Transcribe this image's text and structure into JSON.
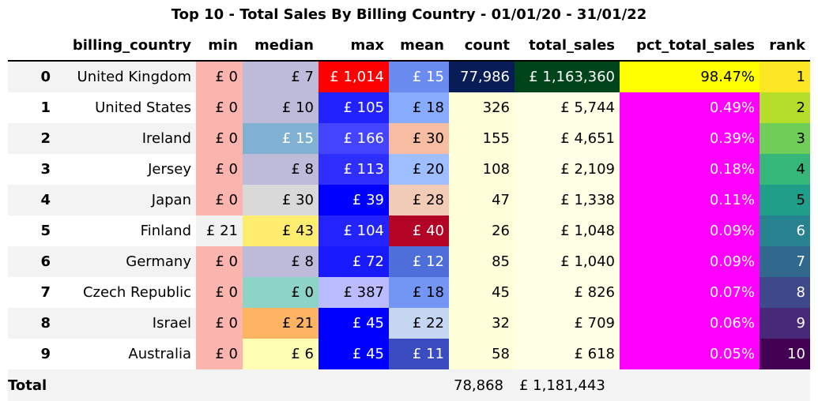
{
  "title": "Top 10 - Total Sales By Billing Country - 01/01/20 - 31/01/22",
  "columns": [
    "",
    "billing_country",
    "min",
    "median",
    "max",
    "mean",
    "count",
    "total_sales",
    "pct_total_sales",
    "rank"
  ],
  "rows": [
    {
      "idx": "0",
      "country": "United Kingdom",
      "min": "£ 0",
      "median": "£ 7",
      "max": "£ 1,014",
      "mean": "£ 15",
      "count": "77,986",
      "total": "£ 1,163,360",
      "pct": "98.47%",
      "rank": "1"
    },
    {
      "idx": "1",
      "country": "United States",
      "min": "£ 0",
      "median": "£ 10",
      "max": "£ 105",
      "mean": "£ 18",
      "count": "326",
      "total": "£ 5,744",
      "pct": "0.49%",
      "rank": "2"
    },
    {
      "idx": "2",
      "country": "Ireland",
      "min": "£ 0",
      "median": "£ 15",
      "max": "£ 166",
      "mean": "£ 30",
      "count": "155",
      "total": "£ 4,651",
      "pct": "0.39%",
      "rank": "3"
    },
    {
      "idx": "3",
      "country": "Jersey",
      "min": "£ 0",
      "median": "£ 8",
      "max": "£ 113",
      "mean": "£ 20",
      "count": "108",
      "total": "£ 2,109",
      "pct": "0.18%",
      "rank": "4"
    },
    {
      "idx": "4",
      "country": "Japan",
      "min": "£ 0",
      "median": "£ 30",
      "max": "£ 39",
      "mean": "£ 28",
      "count": "47",
      "total": "£ 1,338",
      "pct": "0.11%",
      "rank": "5"
    },
    {
      "idx": "5",
      "country": "Finland",
      "min": "£ 21",
      "median": "£ 43",
      "max": "£ 104",
      "mean": "£ 40",
      "count": "26",
      "total": "£ 1,048",
      "pct": "0.09%",
      "rank": "6"
    },
    {
      "idx": "6",
      "country": "Germany",
      "min": "£ 0",
      "median": "£ 8",
      "max": "£ 72",
      "mean": "£ 12",
      "count": "85",
      "total": "£ 1,040",
      "pct": "0.09%",
      "rank": "7"
    },
    {
      "idx": "7",
      "country": "Czech Republic",
      "min": "£ 0",
      "median": "£ 0",
      "max": "£ 387",
      "mean": "£ 18",
      "count": "45",
      "total": "£ 826",
      "pct": "0.07%",
      "rank": "8"
    },
    {
      "idx": "8",
      "country": "Israel",
      "min": "£ 0",
      "median": "£ 21",
      "max": "£ 45",
      "mean": "£ 22",
      "count": "32",
      "total": "£ 709",
      "pct": "0.06%",
      "rank": "9"
    },
    {
      "idx": "9",
      "country": "Australia",
      "min": "£ 0",
      "median": "£ 6",
      "max": "£ 45",
      "mean": "£ 11",
      "count": "58",
      "total": "£ 618",
      "pct": "0.05%",
      "rank": "10"
    }
  ],
  "totals": {
    "label": "Total",
    "count": "78,868",
    "total": "£ 1,181,443"
  },
  "colors": {
    "min": [
      "#fbb4ae",
      "#fbb4ae",
      "#fbb4ae",
      "#fbb4ae",
      "#fbb4ae",
      "#f2f2f2",
      "#fbb4ae",
      "#fbb4ae",
      "#fbb4ae",
      "#fbb4ae"
    ],
    "median": [
      "#bebada",
      "#bebada",
      "#80b1d3",
      "#bebada",
      "#d9d9d9",
      "#ffed6f",
      "#bebada",
      "#8dd3c7",
      "#fdb462",
      "#ffffb3"
    ],
    "max": [
      "#ff0000",
      "#2222ff",
      "#4444ff",
      "#2e2eff",
      "#0000ff",
      "#2323ff",
      "#1a1aff",
      "#bbbbff",
      "#0000ff",
      "#0000ff"
    ],
    "mean": [
      "#6a8bef",
      "#88abfd",
      "#f6bda2",
      "#9ebeff",
      "#f2cbb7",
      "#b40426",
      "#4e6fd9",
      "#7396f5",
      "#c5d6f2",
      "#3b4cc0"
    ],
    "count": [
      "#081d58",
      "#ffffd9",
      "#ffffd9",
      "#ffffd9",
      "#ffffd9",
      "#ffffd9",
      "#ffffd9",
      "#ffffd9",
      "#ffffd9",
      "#ffffd9"
    ],
    "total": [
      "#00441b",
      "#ffffe5",
      "#ffffe5",
      "#ffffe5",
      "#ffffe5",
      "#ffffe5",
      "#ffffe5",
      "#ffffe5",
      "#ffffe5",
      "#ffffe5"
    ],
    "pct": [
      "#ffff00",
      "#ff00ff",
      "#ff00ff",
      "#ff00ff",
      "#ff00ff",
      "#ff00ff",
      "#ff00ff",
      "#ff00ff",
      "#ff00ff",
      "#ff00ff"
    ],
    "rank": [
      "#fde725",
      "#b5de2b",
      "#6ece58",
      "#35b779",
      "#1f9e89",
      "#26828e",
      "#31688e",
      "#3e4989",
      "#482878",
      "#440154"
    ]
  },
  "white_text": {
    "median": [
      false,
      false,
      true,
      false,
      false,
      false,
      false,
      false,
      false,
      false
    ],
    "max": [
      true,
      true,
      true,
      true,
      true,
      true,
      true,
      false,
      true,
      true
    ],
    "mean": [
      true,
      false,
      false,
      false,
      false,
      true,
      true,
      false,
      false,
      true
    ],
    "count": [
      true,
      false,
      false,
      false,
      false,
      false,
      false,
      false,
      false,
      false
    ],
    "total": [
      true,
      false,
      false,
      false,
      false,
      false,
      false,
      false,
      false,
      false
    ],
    "pct": [
      false,
      true,
      true,
      true,
      true,
      true,
      true,
      true,
      true,
      true
    ],
    "rank": [
      false,
      false,
      false,
      false,
      false,
      true,
      true,
      true,
      true,
      true
    ]
  }
}
